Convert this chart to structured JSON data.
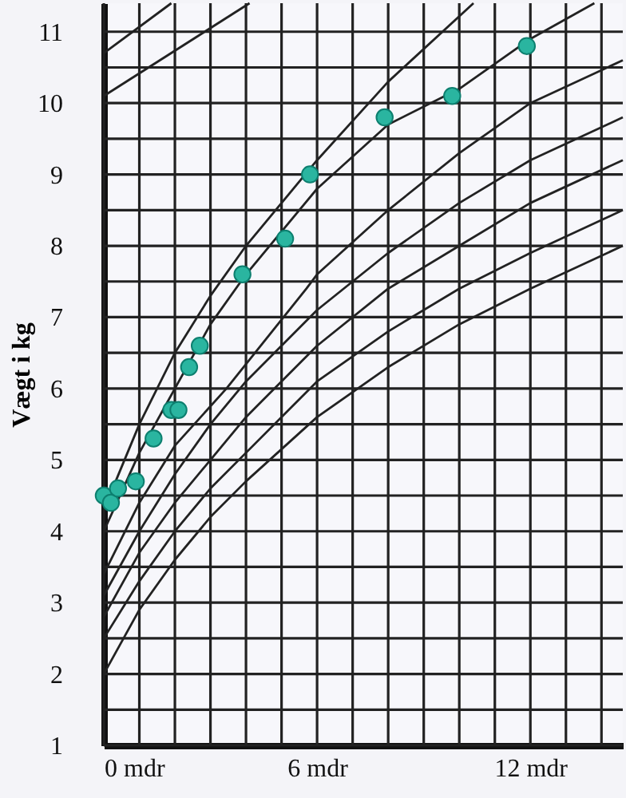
{
  "chart_data": {
    "type": "line",
    "ylabel": "Vægt i kg",
    "xlim": [
      0,
      14.6
    ],
    "ylim": [
      1,
      11.4
    ],
    "xticks": [
      {
        "value": 0,
        "label": "0 mdr"
      },
      {
        "value": 1,
        "label": null
      },
      {
        "value": 2,
        "label": null
      },
      {
        "value": 3,
        "label": null
      },
      {
        "value": 4,
        "label": null
      },
      {
        "value": 5,
        "label": null
      },
      {
        "value": 6,
        "label": "6 mdr"
      },
      {
        "value": 7,
        "label": null
      },
      {
        "value": 8,
        "label": null
      },
      {
        "value": 9,
        "label": null
      },
      {
        "value": 10,
        "label": null
      },
      {
        "value": 11,
        "label": null
      },
      {
        "value": 12,
        "label": "12 mdr"
      },
      {
        "value": 13,
        "label": null
      },
      {
        "value": 14,
        "label": null
      }
    ],
    "yticks": [
      1,
      {
        "value": 1.5,
        "label": null
      },
      2,
      {
        "value": 2.5,
        "label": null
      },
      3,
      {
        "value": 3.5,
        "label": null
      },
      4,
      {
        "value": 4.5,
        "label": null
      },
      5,
      {
        "value": 5.5,
        "label": null
      },
      6,
      {
        "value": 6.5,
        "label": null
      },
      7,
      {
        "value": 7.5,
        "label": null
      },
      8,
      {
        "value": 8.5,
        "label": null
      },
      9,
      {
        "value": 9.5,
        "label": null
      },
      10,
      {
        "value": 10.5,
        "label": null
      },
      11
    ],
    "grid": true,
    "line_style": "solid",
    "series": [
      {
        "color": "#222222",
        "x": [
          0,
          1.9
        ],
        "values": [
          10.7,
          11.4
        ]
      },
      {
        "color": "#222222",
        "x": [
          0,
          4.1
        ],
        "values": [
          10.1,
          11.4
        ]
      },
      {
        "color": "#222222",
        "x": [
          0,
          1,
          2,
          3,
          4,
          6,
          8,
          10.4
        ],
        "values": [
          4.3,
          5.5,
          6.5,
          7.3,
          8.0,
          9.2,
          10.3,
          11.4
        ]
      },
      {
        "color": "#222222",
        "x": [
          0,
          1,
          2,
          3,
          4,
          6,
          8,
          10,
          12,
          13.8
        ],
        "values": [
          4.0,
          5.1,
          6.0,
          6.9,
          7.6,
          8.8,
          9.7,
          10.2,
          10.9,
          11.4
        ]
      },
      {
        "color": "#222222",
        "x": [
          0,
          1,
          2,
          3.45,
          5.7,
          6,
          8,
          10,
          12,
          14.6
        ],
        "values": [
          3.4,
          4.4,
          5.2,
          6.0,
          7.4,
          7.6,
          8.5,
          9.3,
          10.0,
          10.6
        ]
      },
      {
        "color": "#222222",
        "x": [
          0,
          1,
          2,
          3,
          4,
          6,
          8,
          10,
          12,
          14.6
        ],
        "values": [
          3.1,
          4.0,
          4.8,
          5.5,
          6.1,
          7.1,
          7.9,
          8.6,
          9.2,
          9.8
        ]
      },
      {
        "color": "#222222",
        "x": [
          0,
          1,
          2,
          3,
          4,
          6,
          8,
          10,
          12,
          14.6
        ],
        "values": [
          2.8,
          3.7,
          4.4,
          5.0,
          5.6,
          6.6,
          7.4,
          8.0,
          8.6,
          9.2
        ]
      },
      {
        "color": "#222222",
        "x": [
          0,
          1,
          2,
          3,
          4,
          6,
          8,
          10,
          12,
          14.6
        ],
        "values": [
          2.5,
          3.3,
          4.0,
          4.6,
          5.1,
          6.1,
          6.8,
          7.4,
          7.9,
          8.5
        ]
      },
      {
        "color": "#222222",
        "x": [
          0,
          1,
          2,
          3,
          4,
          6,
          8,
          10,
          12,
          14.6
        ],
        "values": [
          2.0,
          2.9,
          3.6,
          4.2,
          4.7,
          5.6,
          6.3,
          6.9,
          7.4,
          8.0
        ]
      },
      {
        "type": "scatter",
        "color": "#2ab5a0",
        "marker": "circle",
        "x": [
          0,
          0.2,
          0.4,
          0.9,
          1.4,
          1.9,
          2.1,
          2.4,
          2.7,
          3.9,
          5.1,
          5.8,
          7.9,
          9.8,
          11.9
        ],
        "values": [
          4.5,
          4.4,
          4.6,
          4.7,
          5.3,
          5.7,
          5.7,
          6.3,
          6.6,
          7.6,
          8.1,
          9.0,
          9.8,
          10.1,
          10.8
        ]
      }
    ]
  }
}
